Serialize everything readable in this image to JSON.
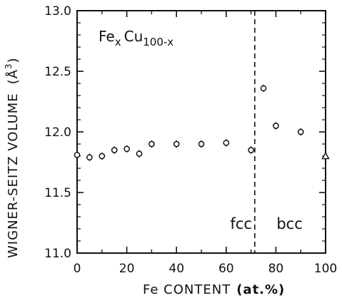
{
  "chart_data": {
    "type": "scatter",
    "title": {
      "base1": "Fe",
      "sub1": "x",
      "base2": "Cu",
      "sub2": "100-x"
    },
    "xlabel": "Fe CONTENT",
    "xlabel_unit": "(at.%)",
    "ylabel": "WIGNER-SEITZ VOLUME",
    "ylabel_unit": "(Å",
    "ylabel_unit_sup": "3",
    "ylabel_unit_close": ")",
    "xlim": [
      0,
      100
    ],
    "ylim": [
      11.0,
      13.0
    ],
    "x_ticks": [
      "0",
      "20",
      "40",
      "60",
      "80",
      "100"
    ],
    "y_ticks": [
      "11.0",
      "11.5",
      "12.0",
      "12.5",
      "13.0"
    ],
    "phase_boundary_x": 71.5,
    "regions": [
      {
        "label": "fcc",
        "x": 66
      },
      {
        "label": "bcc",
        "x": 85.5
      }
    ],
    "series": [
      {
        "marker": "open-circle",
        "points": [
          {
            "x": 0,
            "y": 11.81
          },
          {
            "x": 5,
            "y": 11.79
          },
          {
            "x": 10,
            "y": 11.8
          },
          {
            "x": 15,
            "y": 11.85
          },
          {
            "x": 20,
            "y": 11.86
          },
          {
            "x": 25,
            "y": 11.82
          },
          {
            "x": 30,
            "y": 11.9
          },
          {
            "x": 40,
            "y": 11.9
          },
          {
            "x": 50,
            "y": 11.9
          },
          {
            "x": 60,
            "y": 11.91
          },
          {
            "x": 70,
            "y": 11.85
          },
          {
            "x": 75,
            "y": 12.36
          },
          {
            "x": 80,
            "y": 12.05
          },
          {
            "x": 90,
            "y": 12.0
          }
        ],
        "error": 0.03
      },
      {
        "marker": "open-triangle",
        "points": [
          {
            "x": 100,
            "y": 11.8
          }
        ]
      }
    ]
  }
}
